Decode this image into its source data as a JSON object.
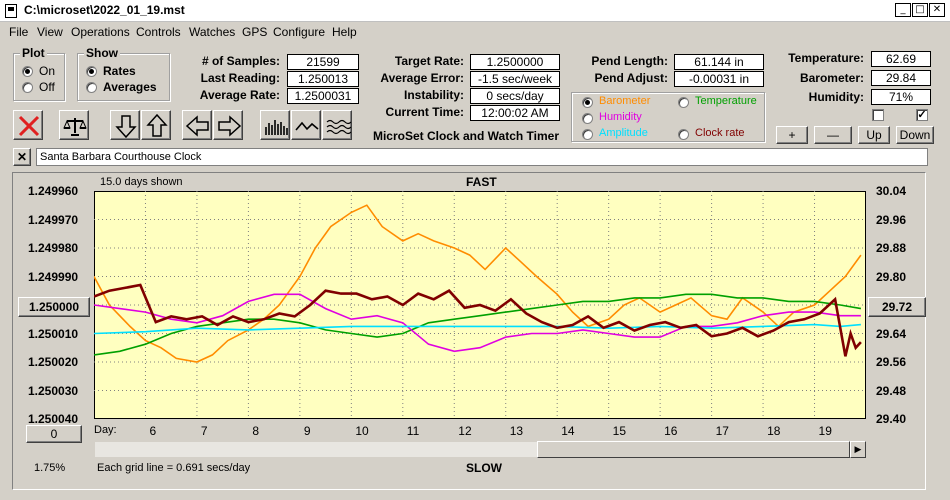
{
  "window": {
    "title": "C:\\microset\\2022_01_19.mst"
  },
  "menu": [
    "File",
    "View",
    "Operations",
    "Controls",
    "Watches",
    "GPS",
    "Configure",
    "Help"
  ],
  "plot_group": {
    "title": "Plot",
    "on": "On",
    "off": "Off",
    "selected": "On"
  },
  "show_group": {
    "title": "Show",
    "rates": "Rates",
    "averages": "Averages",
    "selected": "Rates"
  },
  "stats": {
    "samples_label": "# of Samples:",
    "samples": "21599",
    "last_reading_label": "Last Reading:",
    "last_reading": "1.250013",
    "average_rate_label": "Average Rate:",
    "average_rate": "1.2500031",
    "target_rate_label": "Target Rate:",
    "target_rate": "1.2500000",
    "average_error_label": "Average Error:",
    "average_error": "-1.5 sec/week",
    "instability_label": "Instability:",
    "instability": "0 secs/day",
    "current_time_label": "Current Time:",
    "current_time": "12:00:02 AM",
    "pend_length_label": "Pend Length:",
    "pend_length": "61.144 in",
    "pend_adjust_label": "Pend Adjust:",
    "pend_adjust": "-0.00031 in",
    "temperature_label": "Temperature:",
    "temperature": "62.69",
    "barometer_label": "Barometer:",
    "barometer": "29.84",
    "humidity_label": "Humidity:",
    "humidity": "71%"
  },
  "app_caption": "MicroSet Clock and Watch Timer",
  "legend": {
    "barometer": "Barometer",
    "temperature": "Temperature",
    "humidity": "Humidity",
    "amplitude": "Amplitude",
    "clock_rate": "Clock rate",
    "selected": "Barometer"
  },
  "checkboxes": {
    "left_checked": false,
    "right_checked": true
  },
  "buttons": {
    "plus": "+",
    "minus": "—",
    "up": "Up",
    "down": "Down"
  },
  "clock_name": "Santa Barbara Courthouse Clock",
  "chart": {
    "days_shown": "15.0 days shown",
    "top_label": "FAST",
    "bottom_label": "SLOW",
    "day_label": "Day:",
    "grid_note": "Each grid line = 0.691 secs/day",
    "percent": "1.75%",
    "left_button": "1.250000",
    "bottom_button": "0",
    "right_button": "29.72"
  },
  "colors": {
    "plot_bg": "#ffffc0",
    "barometer": "#ff8c00",
    "temperature": "#00a000",
    "humidity": "#e000e0",
    "amplitude": "#00e0ff",
    "clock_rate": "#800000"
  },
  "chart_data": {
    "type": "line",
    "title": "",
    "xlabel": "Day",
    "x_ticks": [
      6,
      7,
      8,
      9,
      10,
      11,
      12,
      13,
      14,
      15,
      16,
      17,
      18,
      19
    ],
    "xlim": [
      5,
      20
    ],
    "y_left_ticks": [
      "1.249960",
      "1.249970",
      "1.249980",
      "1.249990",
      "1.250000",
      "1.250010",
      "1.250020",
      "1.250030",
      "1.250040"
    ],
    "y_left_range": [
      1.24996,
      1.25004
    ],
    "y_left_inverted": true,
    "y_right_ticks": [
      "30.04",
      "29.96",
      "29.88",
      "29.80",
      "29.72",
      "29.64",
      "29.56",
      "29.48",
      "29.40"
    ],
    "y_right_range": [
      29.4,
      30.04
    ],
    "grid": true,
    "series": [
      {
        "name": "Barometer",
        "axis": "right",
        "x": [
          5,
          5.3,
          5.7,
          6,
          6.3,
          6.6,
          7,
          7.3,
          7.6,
          8,
          8.3,
          8.6,
          9,
          9.3,
          9.6,
          10,
          10.3,
          10.6,
          11,
          11.3,
          11.6,
          12,
          12.3,
          12.6,
          13,
          13.3,
          13.6,
          14,
          14.3,
          14.6,
          15,
          15.3,
          15.6,
          16,
          16.3,
          16.6,
          17,
          17.3,
          17.6,
          18,
          18.3,
          18.6,
          19,
          19.3,
          19.6,
          19.9
        ],
        "y": [
          29.8,
          29.72,
          29.66,
          29.62,
          29.6,
          29.57,
          29.56,
          29.58,
          29.62,
          29.65,
          29.68,
          29.72,
          29.8,
          29.88,
          29.94,
          29.98,
          30.0,
          29.94,
          29.9,
          29.92,
          29.9,
          29.88,
          29.86,
          29.82,
          29.88,
          29.84,
          29.8,
          29.75,
          29.7,
          29.66,
          29.68,
          29.72,
          29.74,
          29.7,
          29.72,
          29.74,
          29.69,
          29.68,
          29.74,
          29.7,
          29.66,
          29.7,
          29.72,
          29.76,
          29.8,
          29.86
        ]
      },
      {
        "name": "Temperature",
        "axis": "right",
        "x": [
          5,
          5.5,
          6,
          6.5,
          7,
          7.5,
          8,
          8.5,
          9,
          9.5,
          10,
          10.5,
          11,
          11.5,
          12,
          12.5,
          13,
          13.5,
          14,
          14.5,
          15,
          15.5,
          16,
          16.5,
          17,
          17.5,
          18,
          18.5,
          19,
          19.5,
          19.9
        ],
        "y": [
          29.58,
          29.59,
          29.61,
          29.64,
          29.66,
          29.67,
          29.68,
          29.68,
          29.67,
          29.65,
          29.64,
          29.63,
          29.64,
          29.67,
          29.68,
          29.69,
          29.7,
          29.71,
          29.72,
          29.73,
          29.73,
          29.74,
          29.74,
          29.75,
          29.75,
          29.74,
          29.74,
          29.73,
          29.73,
          29.72,
          29.71
        ]
      },
      {
        "name": "Humidity",
        "axis": "right",
        "x": [
          5,
          5.5,
          6,
          6.5,
          7,
          7.5,
          8,
          8.5,
          9,
          9.5,
          10,
          10.5,
          11,
          11.5,
          12,
          12.5,
          13,
          13.5,
          14,
          14.5,
          15,
          15.5,
          16,
          16.5,
          17,
          17.5,
          18,
          18.5,
          19,
          19.5,
          19.9
        ],
        "y": [
          29.72,
          29.71,
          29.7,
          29.68,
          29.67,
          29.69,
          29.73,
          29.75,
          29.75,
          29.71,
          29.68,
          29.69,
          29.67,
          29.61,
          29.59,
          29.6,
          29.63,
          29.64,
          29.64,
          29.65,
          29.64,
          29.63,
          29.63,
          29.66,
          29.66,
          29.67,
          29.69,
          29.7,
          29.7,
          29.69,
          29.69
        ]
      },
      {
        "name": "Amplitude",
        "axis": "right",
        "x": [
          5,
          6,
          7,
          8,
          9,
          10,
          11,
          12,
          13,
          14,
          15,
          16,
          17,
          18,
          19,
          19.5,
          19.9
        ],
        "y": [
          29.64,
          29.645,
          29.655,
          29.65,
          29.655,
          29.66,
          29.66,
          29.66,
          29.66,
          29.66,
          29.655,
          29.66,
          29.655,
          29.66,
          29.665,
          29.66,
          29.665
        ]
      },
      {
        "name": "Clock rate",
        "axis": "left",
        "x": [
          5,
          5.3,
          5.6,
          5.9,
          6.2,
          6.5,
          6.8,
          7.1,
          7.4,
          7.7,
          8,
          8.3,
          8.6,
          8.9,
          9.2,
          9.5,
          9.8,
          10.1,
          10.4,
          10.7,
          11,
          11.3,
          11.6,
          11.9,
          12.2,
          12.5,
          12.8,
          13.1,
          13.4,
          13.7,
          14,
          14.3,
          14.6,
          14.9,
          15.2,
          15.5,
          15.8,
          16.1,
          16.4,
          16.7,
          17,
          17.3,
          17.6,
          17.9,
          18.2,
          18.5,
          18.8,
          19.1,
          19.4,
          19.6,
          19.7,
          19.8,
          19.9
        ],
        "y": [
          1.249997,
          1.249995,
          1.249994,
          1.249993,
          1.250006,
          1.250004,
          1.250005,
          1.250004,
          1.250007,
          1.250004,
          1.250006,
          1.250005,
          1.250003,
          1.250004,
          1.25,
          1.249995,
          1.249996,
          1.249996,
          1.249998,
          1.249997,
          1.25,
          1.249996,
          1.249998,
          1.249995,
          1.250001,
          1.25,
          1.250002,
          1.249998,
          1.250003,
          1.250006,
          1.250008,
          1.250007,
          1.250004,
          1.250008,
          1.250006,
          1.250009,
          1.250007,
          1.250006,
          1.250008,
          1.250007,
          1.250011,
          1.25001,
          1.250008,
          1.250011,
          1.250009,
          1.250006,
          1.250005,
          1.250003,
          1.249998,
          1.250018,
          1.25001,
          1.250015,
          1.250013
        ]
      }
    ]
  }
}
